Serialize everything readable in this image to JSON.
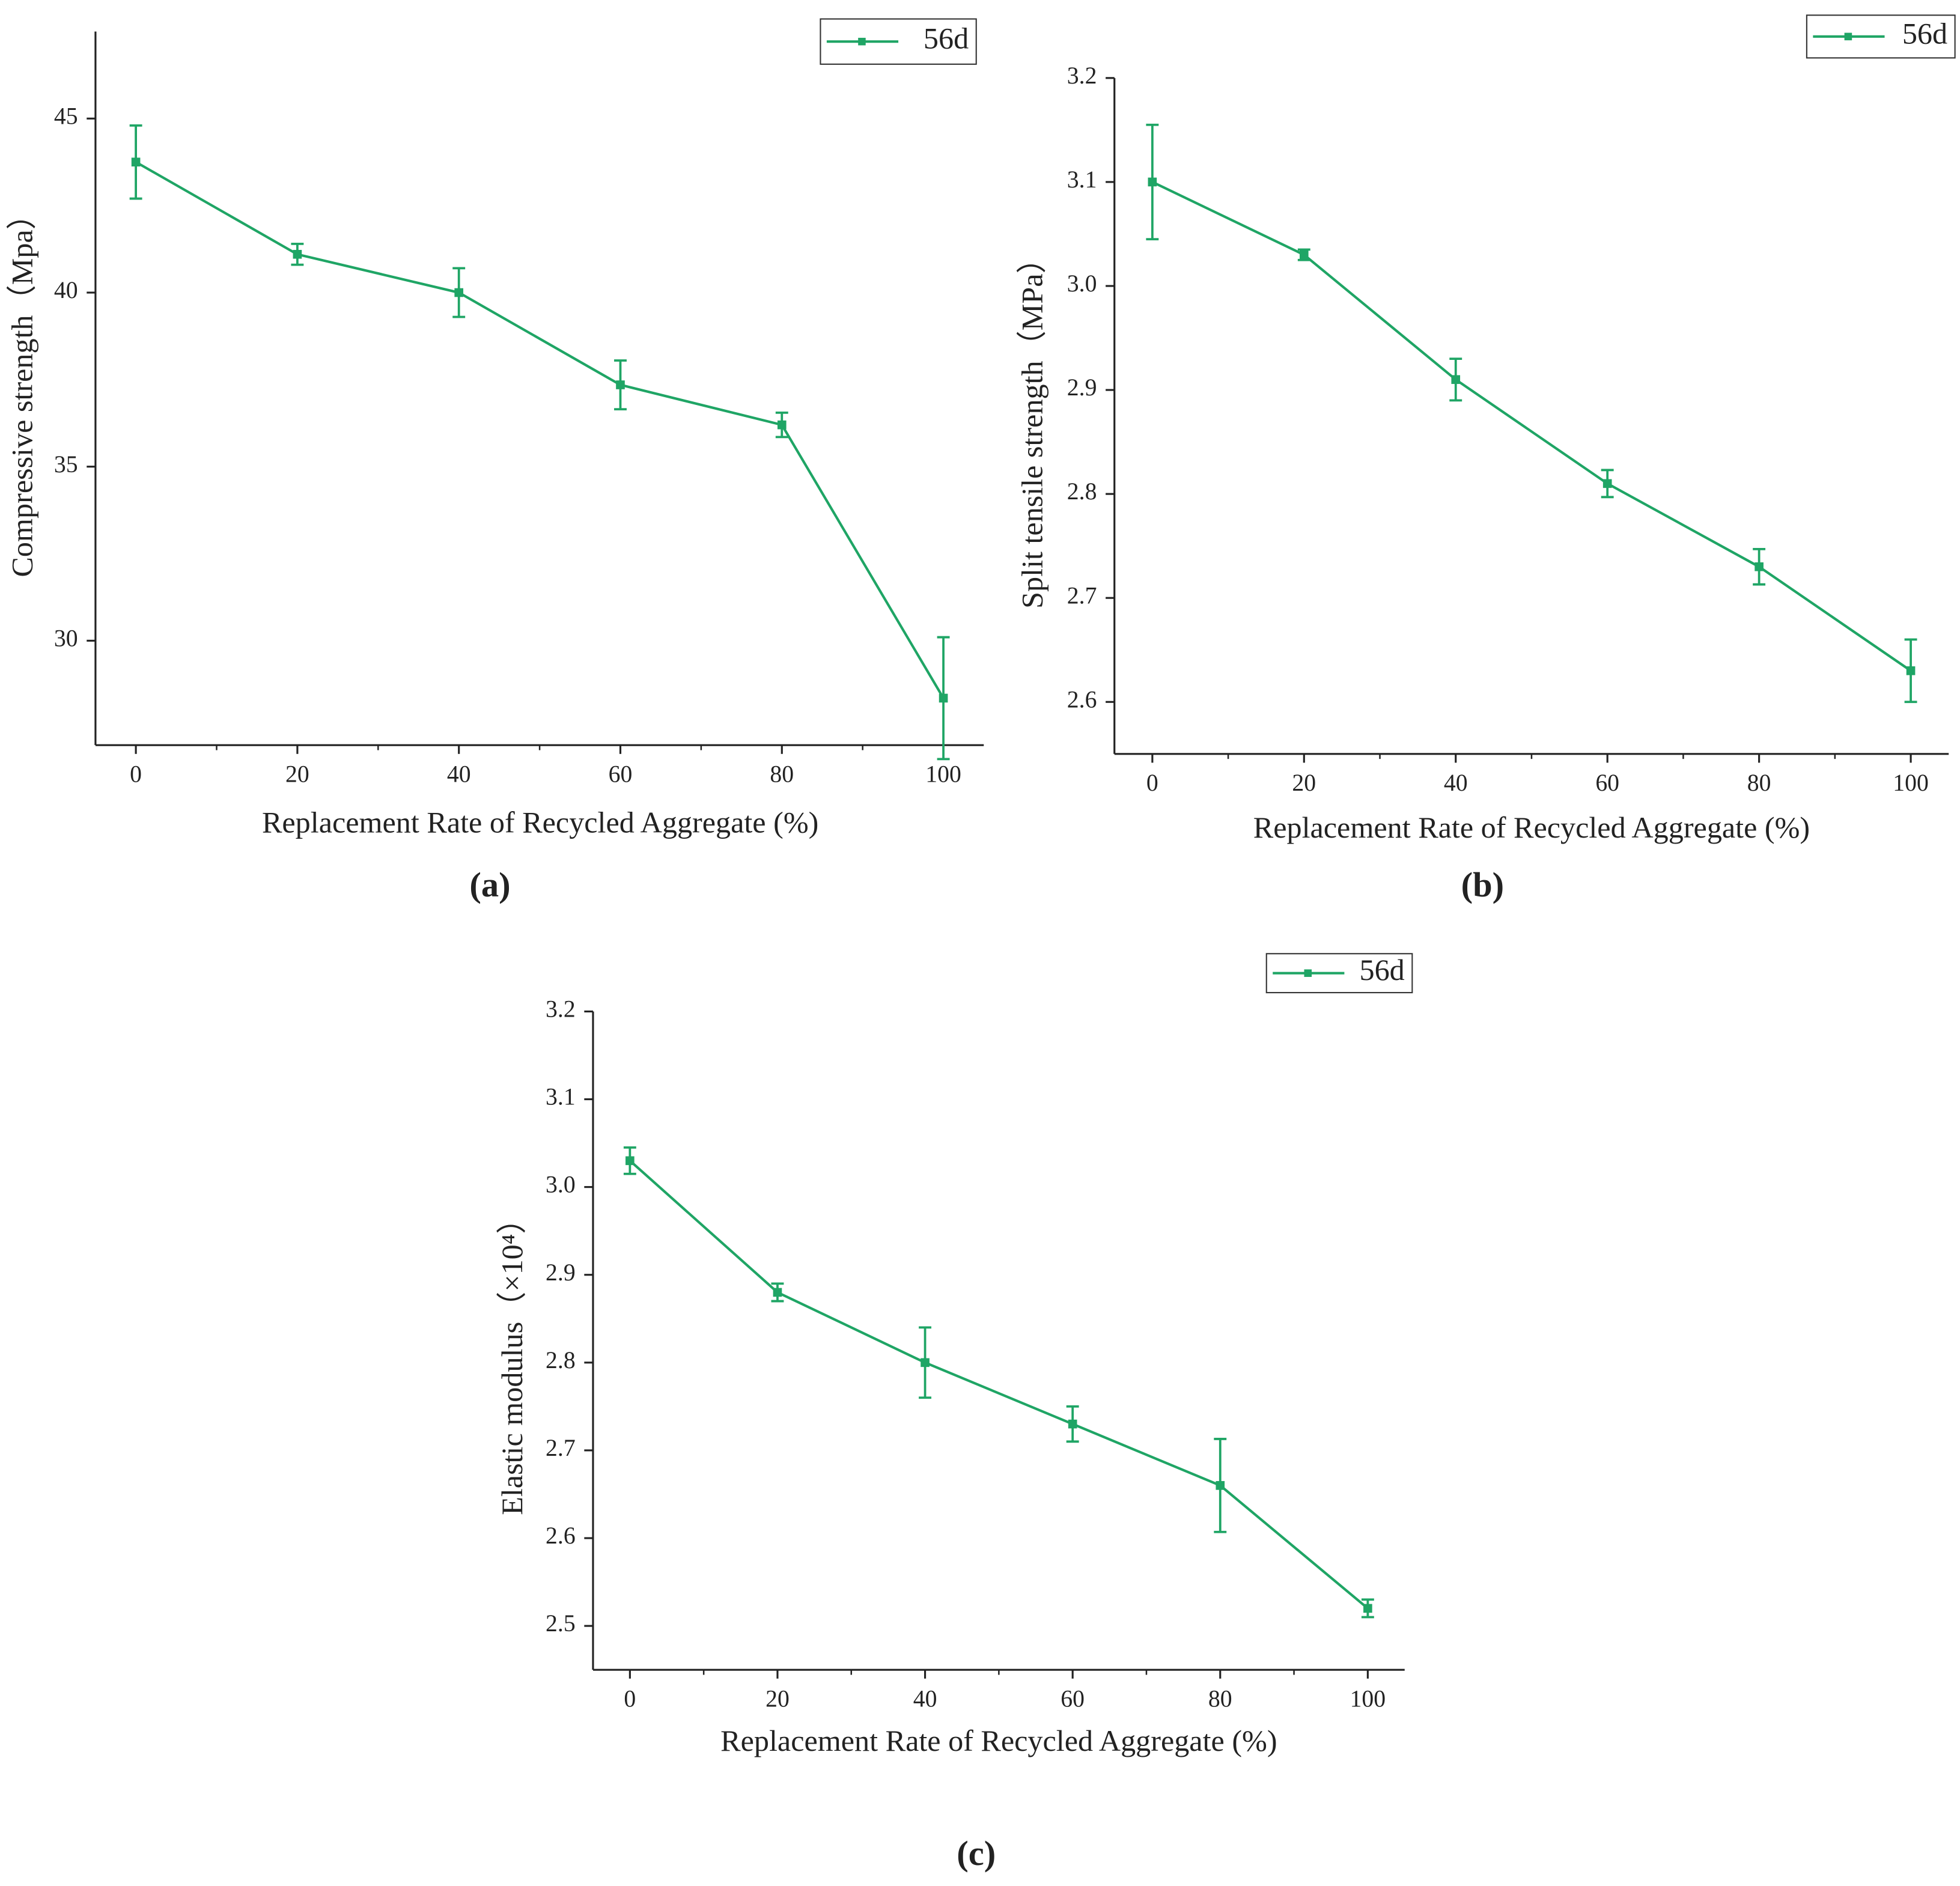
{
  "chart_data": [
    {
      "type": "line",
      "panel_label": "(a)",
      "x_label": "Replacement Rate of Recycled Aggregate (%)",
      "y_label": "Compressive strength（Mpa）",
      "x": [
        0,
        20,
        40,
        60,
        80,
        100
      ],
      "series": [
        {
          "name": "56d",
          "color": "#1fa565",
          "values": [
            43.75,
            41.1,
            40.0,
            37.35,
            36.2,
            28.35
          ],
          "errors": [
            1.05,
            0.3,
            0.7,
            0.7,
            0.35,
            1.75
          ]
        }
      ],
      "xlim": [
        -5,
        105
      ],
      "xticks": [
        0,
        20,
        40,
        60,
        80,
        100
      ],
      "ylim": [
        27,
        47.5
      ],
      "yticks": [
        30,
        35,
        40,
        45
      ],
      "legend": "upper right"
    },
    {
      "type": "line",
      "panel_label": "(b)",
      "x_label": "Replacement Rate of Recycled Aggregate (%)",
      "y_label": "Split tensile strength（MPa）",
      "x": [
        0,
        20,
        40,
        60,
        80,
        100
      ],
      "series": [
        {
          "name": "56d",
          "color": "#1fa565",
          "values": [
            3.1,
            3.03,
            2.91,
            2.81,
            2.73,
            2.63
          ],
          "errors": [
            0.055,
            0.005,
            0.02,
            0.013,
            0.017,
            0.03
          ]
        }
      ],
      "xlim": [
        -5,
        105
      ],
      "xticks": [
        0,
        20,
        40,
        60,
        80,
        100
      ],
      "ylim": [
        2.55,
        3.2
      ],
      "yticks": [
        2.6,
        2.7,
        2.8,
        2.9,
        {
          "value": 3,
          "label": "3.0"
        },
        3.1,
        3.2
      ],
      "legend": "upper right"
    },
    {
      "type": "line",
      "panel_label": "(c)",
      "x_label": "Replacement Rate of Recycled Aggregate (%)",
      "y_label": "Elastic modulus（×10⁴）",
      "x": [
        0,
        20,
        40,
        60,
        80,
        100
      ],
      "series": [
        {
          "name": "56d",
          "color": "#1fa565",
          "values": [
            3.03,
            2.88,
            2.8,
            2.73,
            2.66,
            2.52
          ],
          "errors": [
            0.015,
            0.01,
            0.04,
            0.02,
            0.053,
            0.01
          ]
        }
      ],
      "xlim": [
        -5,
        105
      ],
      "xticks": [
        0,
        20,
        40,
        60,
        80,
        100
      ],
      "ylim": [
        2.45,
        3.2
      ],
      "yticks": [
        2.5,
        2.6,
        2.7,
        2.8,
        2.9,
        {
          "value": 3,
          "label": "3.0"
        },
        3.1,
        3.2
      ],
      "legend": "upper right"
    }
  ]
}
